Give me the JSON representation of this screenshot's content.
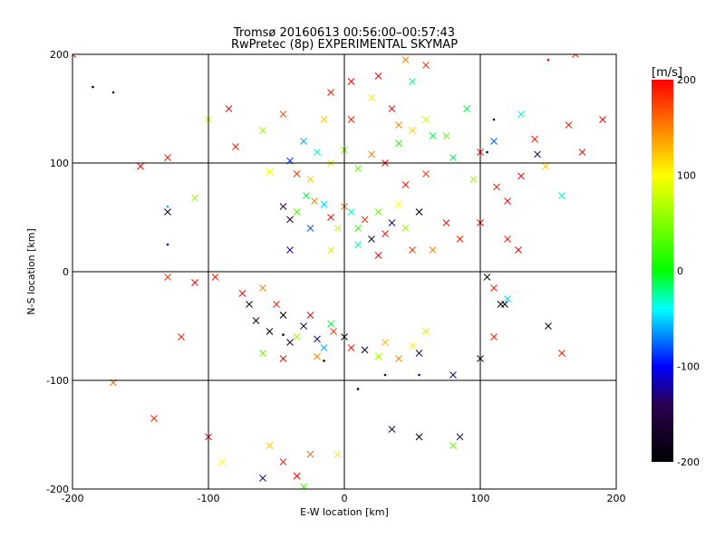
{
  "chart_data": {
    "type": "scatter",
    "title_line1": "Tromsø 20160613 00:56:00–00:57:43",
    "title_line2": "RwPretec (8p) EXPERIMENTAL SKYMAP",
    "xlabel": "E-W location [km]",
    "ylabel": "N-S location [km]",
    "xlim": [
      -200,
      200
    ],
    "ylim": [
      -200,
      200
    ],
    "xticks": [
      -200,
      -100,
      0,
      100,
      200
    ],
    "yticks": [
      -200,
      -100,
      0,
      100,
      200
    ],
    "grid": true,
    "colorbar": {
      "label": "[m/s]",
      "range": [
        -200,
        200
      ],
      "ticks": [
        200,
        100,
        0,
        -100,
        -200
      ],
      "colors": [
        "#ff0000",
        "#ffff00",
        "#00ff00",
        "#00ffff",
        "#0000ff",
        "#000000"
      ]
    },
    "points": [
      [
        -28,
        70,
        "x",
        -10
      ],
      [
        -22,
        65,
        "x",
        150
      ],
      [
        -35,
        55,
        "x",
        30
      ],
      [
        -15,
        62,
        "x",
        -50
      ],
      [
        -40,
        48,
        "x",
        -160
      ],
      [
        -10,
        50,
        "x",
        200
      ],
      [
        5,
        55,
        "x",
        -30
      ],
      [
        15,
        48,
        "x",
        180
      ],
      [
        25,
        55,
        "x",
        40
      ],
      [
        35,
        45,
        "x",
        -120
      ],
      [
        20,
        30,
        "x",
        -170
      ],
      [
        30,
        35,
        "x",
        190
      ],
      [
        45,
        40,
        "x",
        60
      ],
      [
        55,
        55,
        "x",
        -200
      ],
      [
        -5,
        40,
        "x",
        80
      ],
      [
        -25,
        40,
        "x",
        -80
      ],
      [
        10,
        40,
        "x",
        20
      ],
      [
        0,
        60,
        "x",
        160
      ],
      [
        -45,
        60,
        "x",
        -140
      ],
      [
        40,
        62,
        "x",
        100
      ],
      [
        -20,
        110,
        "x",
        -30
      ],
      [
        0,
        112,
        "x",
        50
      ],
      [
        20,
        108,
        "x",
        150
      ],
      [
        40,
        118,
        "x",
        10
      ],
      [
        -40,
        102,
        "x",
        -90
      ],
      [
        -10,
        100,
        "x",
        80
      ],
      [
        30,
        100,
        "x",
        200
      ],
      [
        -30,
        120,
        "x",
        -60
      ],
      [
        50,
        130,
        "x",
        120
      ],
      [
        65,
        125,
        "x",
        -10
      ],
      [
        -55,
        92,
        "x",
        100
      ],
      [
        10,
        95,
        "x",
        40
      ],
      [
        -35,
        90,
        "x",
        180
      ],
      [
        -75,
        -20,
        "x",
        200
      ],
      [
        -60,
        -15,
        "x",
        150
      ],
      [
        -45,
        -40,
        "x",
        -200
      ],
      [
        -30,
        -50,
        "x",
        -170
      ],
      [
        -55,
        -55,
        "x",
        -190
      ],
      [
        -35,
        -60,
        "x",
        60
      ],
      [
        -20,
        -62,
        "x",
        -120
      ],
      [
        -65,
        -45,
        "x",
        -190
      ],
      [
        -25,
        -40,
        "x",
        200
      ],
      [
        -15,
        -70,
        "x",
        -60
      ],
      [
        -8,
        -55,
        "x",
        180
      ],
      [
        0,
        -60,
        "x",
        -200
      ],
      [
        5,
        -70,
        "x",
        190
      ],
      [
        15,
        -72,
        "x",
        -180
      ],
      [
        30,
        -65,
        "x",
        130
      ],
      [
        40,
        -80,
        "x",
        150
      ],
      [
        50,
        -68,
        "x",
        90
      ],
      [
        55,
        -75,
        "x",
        -130
      ],
      [
        -50,
        -30,
        "x",
        190
      ],
      [
        -40,
        -65,
        "x",
        -170
      ],
      [
        -10,
        -48,
        "x",
        -10
      ],
      [
        -70,
        -30,
        "x",
        -200
      ],
      [
        -45,
        -80,
        "x",
        200
      ],
      [
        -110,
        -10,
        "x",
        200
      ],
      [
        -95,
        -5,
        "x",
        190
      ],
      [
        -120,
        -60,
        "x",
        190
      ],
      [
        -130,
        -5,
        "x",
        180
      ],
      [
        -60,
        -75,
        "x",
        40
      ],
      [
        -20,
        -78,
        "x",
        150
      ],
      [
        25,
        -78,
        "x",
        60
      ],
      [
        60,
        -55,
        "x",
        110
      ],
      [
        80,
        -95,
        "x",
        -130
      ],
      [
        100,
        -80,
        "x",
        -180
      ],
      [
        110,
        -60,
        "x",
        190
      ],
      [
        115,
        -30,
        "x",
        -200
      ],
      [
        110,
        -15,
        "x",
        190
      ],
      [
        150,
        -50,
        "x",
        -200
      ],
      [
        160,
        -75,
        "x",
        190
      ],
      [
        120,
        -25,
        "x",
        -50
      ],
      [
        -150,
        97,
        "x",
        200
      ],
      [
        -130,
        105,
        "x",
        190
      ],
      [
        -110,
        68,
        "x",
        60
      ],
      [
        -130,
        55,
        "x",
        -190
      ],
      [
        -170,
        -102,
        "x",
        160
      ],
      [
        -140,
        -135,
        "x",
        190
      ],
      [
        -100,
        -152,
        "x",
        200
      ],
      [
        -90,
        -175,
        "x",
        100
      ],
      [
        -60,
        -190,
        "x",
        -130
      ],
      [
        -35,
        -188,
        "x",
        200
      ],
      [
        -45,
        -175,
        "x",
        190
      ],
      [
        -55,
        -160,
        "x",
        120
      ],
      [
        -30,
        -198,
        "x",
        20
      ],
      [
        -5,
        -168,
        "x",
        110
      ],
      [
        -25,
        -168,
        "x",
        160
      ],
      [
        55,
        -152,
        "x",
        -200
      ],
      [
        85,
        -152,
        "x",
        -130
      ],
      [
        80,
        -160,
        "x",
        40
      ],
      [
        35,
        -145,
        "x",
        -150
      ],
      [
        60,
        190,
        "x",
        180
      ],
      [
        45,
        195,
        "x",
        150
      ],
      [
        5,
        175,
        "x",
        200
      ],
      [
        130,
        145,
        "x",
        -30
      ],
      [
        142,
        108,
        "x",
        -130
      ],
      [
        148,
        97,
        "x",
        120
      ],
      [
        140,
        122,
        "x",
        190
      ],
      [
        100,
        110,
        "x",
        200
      ],
      [
        110,
        120,
        "x",
        -80
      ],
      [
        95,
        85,
        "x",
        60
      ],
      [
        120,
        65,
        "x",
        200
      ],
      [
        112,
        78,
        "x",
        190
      ],
      [
        130,
        88,
        "x",
        200
      ],
      [
        100,
        45,
        "x",
        200
      ],
      [
        120,
        30,
        "x",
        190
      ],
      [
        128,
        20,
        "x",
        200
      ],
      [
        105,
        -5,
        "x",
        -180
      ],
      [
        118,
        -30,
        "x",
        -190
      ],
      [
        90,
        150,
        "x",
        -10
      ],
      [
        165,
        135,
        "x",
        190
      ],
      [
        160,
        70,
        "x",
        -30
      ],
      [
        175,
        110,
        "x",
        200
      ],
      [
        190,
        140,
        "x",
        200
      ],
      [
        170,
        200,
        "x",
        190
      ],
      [
        -200,
        200,
        "x",
        200
      ],
      [
        -85,
        150,
        "x",
        200
      ],
      [
        -80,
        115,
        "x",
        190
      ],
      [
        -100,
        140,
        "x",
        80
      ],
      [
        -25,
        85,
        "x",
        120
      ],
      [
        45,
        80,
        "x",
        190
      ],
      [
        60,
        90,
        "x",
        180
      ],
      [
        75,
        45,
        "x",
        200
      ],
      [
        85,
        30,
        "x",
        190
      ],
      [
        65,
        20,
        "x",
        150
      ],
      [
        50,
        20,
        "x",
        180
      ],
      [
        25,
        15,
        "x",
        200
      ],
      [
        -40,
        20,
        "x",
        -120
      ],
      [
        -10,
        20,
        "x",
        80
      ],
      [
        10,
        25,
        "x",
        -30
      ],
      [
        5,
        140,
        "x",
        190
      ],
      [
        20,
        160,
        "x",
        110
      ],
      [
        35,
        150,
        "x",
        200
      ],
      [
        -10,
        165,
        "x",
        190
      ],
      [
        25,
        180,
        "x",
        200
      ],
      [
        50,
        175,
        "x",
        -20
      ],
      [
        40,
        135,
        "x",
        150
      ],
      [
        60,
        140,
        "x",
        80
      ],
      [
        75,
        125,
        "x",
        40
      ],
      [
        80,
        105,
        "x",
        -10
      ],
      [
        -60,
        130,
        "x",
        60
      ],
      [
        -45,
        145,
        "x",
        170
      ],
      [
        -15,
        140,
        "x",
        120
      ],
      [
        -185,
        170,
        "d",
        -200
      ],
      [
        -170,
        165,
        "d",
        -200
      ],
      [
        -200,
        200,
        "d",
        190
      ],
      [
        -130,
        60,
        "d",
        -60
      ],
      [
        -130,
        25,
        "d",
        -130
      ],
      [
        -45,
        -58,
        "d",
        -200
      ],
      [
        -15,
        -82,
        "d",
        -200
      ],
      [
        30,
        -95,
        "d",
        -150
      ],
      [
        55,
        -95,
        "d",
        -120
      ],
      [
        105,
        110,
        "d",
        -200
      ],
      [
        110,
        140,
        "d",
        -200
      ],
      [
        150,
        195,
        "d",
        200
      ],
      [
        10,
        -108,
        "d",
        -190
      ]
    ]
  }
}
